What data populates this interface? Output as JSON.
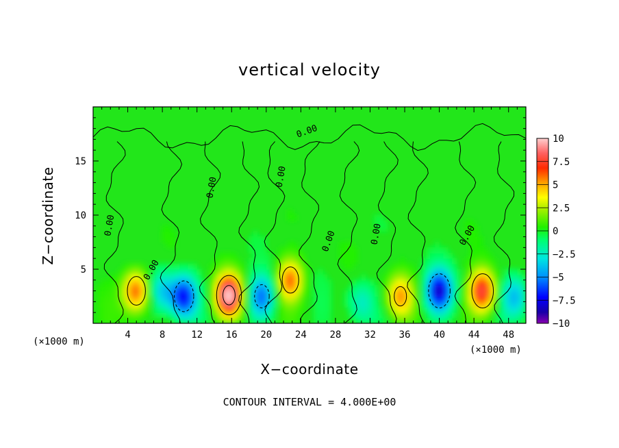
{
  "chart_data": {
    "type": "heatmap",
    "title": "vertical velocity",
    "xlabel": "X−coordinate",
    "ylabel": "Z−coordinate",
    "x_unit": "(×1000 m)",
    "annotation": "CONTOUR INTERVAL = 4.000E+00",
    "xlim": [
      0,
      50
    ],
    "ylim": [
      0,
      20
    ],
    "x_ticks": [
      4,
      8,
      12,
      16,
      20,
      24,
      28,
      32,
      36,
      40,
      44,
      48
    ],
    "y_ticks": [
      5,
      10,
      15
    ],
    "colorbar": {
      "range": [
        -10,
        10
      ],
      "tick_labels": [
        "10",
        "7.5",
        "5",
        "2.5",
        "0",
        "−2.5",
        "−5",
        "−7.5",
        "−10"
      ],
      "tick_values": [
        10,
        7.5,
        5,
        2.5,
        0,
        -2.5,
        -5,
        -7.5,
        -10
      ]
    },
    "contour_label": "0.00",
    "features": [
      {
        "x": 5.0,
        "z": 3.0,
        "w": 6.5
      },
      {
        "x": 8.0,
        "z": 3.0,
        "w": -3.5
      },
      {
        "x": 10.5,
        "z": 2.5,
        "w": -7.0
      },
      {
        "x": 15.7,
        "z": 2.6,
        "w": 10.0
      },
      {
        "x": 19.5,
        "z": 2.5,
        "w": -5.5
      },
      {
        "x": 22.8,
        "z": 4.0,
        "w": 6.0
      },
      {
        "x": 31.0,
        "z": 2.0,
        "w": -2.5
      },
      {
        "x": 35.5,
        "z": 2.5,
        "w": 5.0
      },
      {
        "x": 40.0,
        "z": 3.0,
        "w": -8.0
      },
      {
        "x": 45.0,
        "z": 3.0,
        "w": 8.0
      },
      {
        "x": 48.8,
        "z": 2.5,
        "w": -4.0
      }
    ]
  }
}
